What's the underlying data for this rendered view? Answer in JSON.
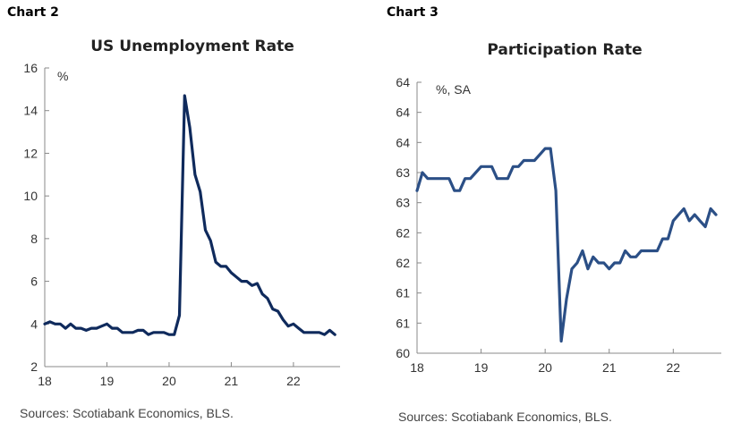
{
  "chart_data": [
    {
      "type": "line",
      "label": "Chart 2",
      "title": "US Unemployment Rate",
      "unit_label": "%",
      "source": "Sources: Scotiabank Economics, BLS.",
      "color": "#0f2a5c",
      "ylim": [
        2,
        16
      ],
      "yticks": [
        2,
        4,
        6,
        8,
        10,
        12,
        14,
        16
      ],
      "ytick_labels": [
        "2",
        "4",
        "6",
        "8",
        "10",
        "12",
        "14",
        "16"
      ],
      "xlim": [
        2018,
        2022.75
      ],
      "xticks": [
        2018,
        2019,
        2020,
        2021,
        2022
      ],
      "xtick_labels": [
        "18",
        "19",
        "20",
        "21",
        "22"
      ],
      "grid": false,
      "x_start": 2018,
      "x_step": 0.0833333,
      "values": [
        4.0,
        4.1,
        4.0,
        4.0,
        3.8,
        4.0,
        3.8,
        3.8,
        3.7,
        3.8,
        3.8,
        3.9,
        4.0,
        3.8,
        3.8,
        3.6,
        3.6,
        3.6,
        3.7,
        3.7,
        3.5,
        3.6,
        3.6,
        3.6,
        3.5,
        3.5,
        4.4,
        14.7,
        13.2,
        11.0,
        10.2,
        8.4,
        7.9,
        6.9,
        6.7,
        6.7,
        6.4,
        6.2,
        6.0,
        6.0,
        5.8,
        5.9,
        5.4,
        5.2,
        4.7,
        4.6,
        4.2,
        3.9,
        4.0,
        3.8,
        3.6,
        3.6,
        3.6,
        3.6,
        3.5,
        3.7,
        3.5
      ]
    },
    {
      "type": "line",
      "label": "Chart 3",
      "title": "Participation Rate",
      "unit_label": "%, SA",
      "source": "Sources: Scotiabank Economics, BLS.",
      "color": "#2b4f86",
      "ylim": [
        60,
        64.5
      ],
      "yticks": [
        60,
        60.5,
        61,
        61.5,
        62,
        62.5,
        63,
        63.5,
        64,
        64.5
      ],
      "ytick_labels": [
        "60",
        "61",
        "61",
        "62",
        "62",
        "63",
        "63",
        "64",
        "64",
        "64"
      ],
      "xlim": [
        2018,
        2022.75
      ],
      "xticks": [
        2018,
        2019,
        2020,
        2021,
        2022
      ],
      "xtick_labels": [
        "18",
        "19",
        "20",
        "21",
        "22"
      ],
      "grid": false,
      "x_start": 2018,
      "x_step": 0.0833333,
      "values": [
        62.7,
        63.0,
        62.9,
        62.9,
        62.9,
        62.9,
        62.9,
        62.7,
        62.7,
        62.9,
        62.9,
        63.0,
        63.1,
        63.1,
        63.1,
        62.9,
        62.9,
        62.9,
        63.1,
        63.1,
        63.2,
        63.2,
        63.2,
        63.3,
        63.4,
        63.4,
        62.7,
        60.2,
        60.9,
        61.4,
        61.5,
        61.7,
        61.4,
        61.6,
        61.5,
        61.5,
        61.4,
        61.5,
        61.5,
        61.7,
        61.6,
        61.6,
        61.7,
        61.7,
        61.7,
        61.7,
        61.9,
        61.9,
        62.2,
        62.3,
        62.4,
        62.2,
        62.3,
        62.2,
        62.1,
        62.4,
        62.3
      ]
    }
  ]
}
